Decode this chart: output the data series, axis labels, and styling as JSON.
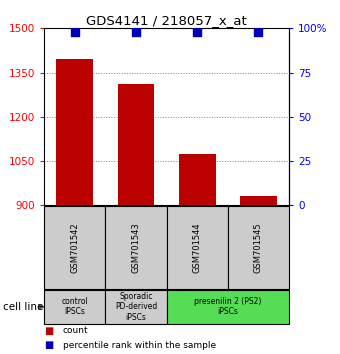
{
  "title": "GDS4141 / 218057_x_at",
  "samples": [
    "GSM701542",
    "GSM701543",
    "GSM701544",
    "GSM701545"
  ],
  "counts": [
    1395,
    1310,
    1075,
    930
  ],
  "percentile_ranks": [
    98,
    98,
    98,
    98
  ],
  "ylim_left": [
    900,
    1500
  ],
  "ylim_right": [
    0,
    100
  ],
  "yticks_left": [
    900,
    1050,
    1200,
    1350,
    1500
  ],
  "yticks_right": [
    0,
    25,
    50,
    75,
    100
  ],
  "ytick_labels_right": [
    "0",
    "25",
    "50",
    "75",
    "100%"
  ],
  "bar_color": "#bb0000",
  "dot_color": "#0000bb",
  "bar_bottom": 900,
  "groups": [
    {
      "label": "control\nIPSCs",
      "samples": [
        0
      ],
      "color": "#cccccc"
    },
    {
      "label": "Sporadic\nPD-derived\niPSCs",
      "samples": [
        1
      ],
      "color": "#cccccc"
    },
    {
      "label": "presenilin 2 (PS2)\niPSCs",
      "samples": [
        2,
        3
      ],
      "color": "#55dd55"
    }
  ],
  "cell_line_label": "cell line",
  "legend_count_label": "count",
  "legend_percentile_label": "percentile rank within the sample",
  "grid_color": "#888888",
  "sample_box_color": "#cccccc",
  "bar_width": 0.6
}
